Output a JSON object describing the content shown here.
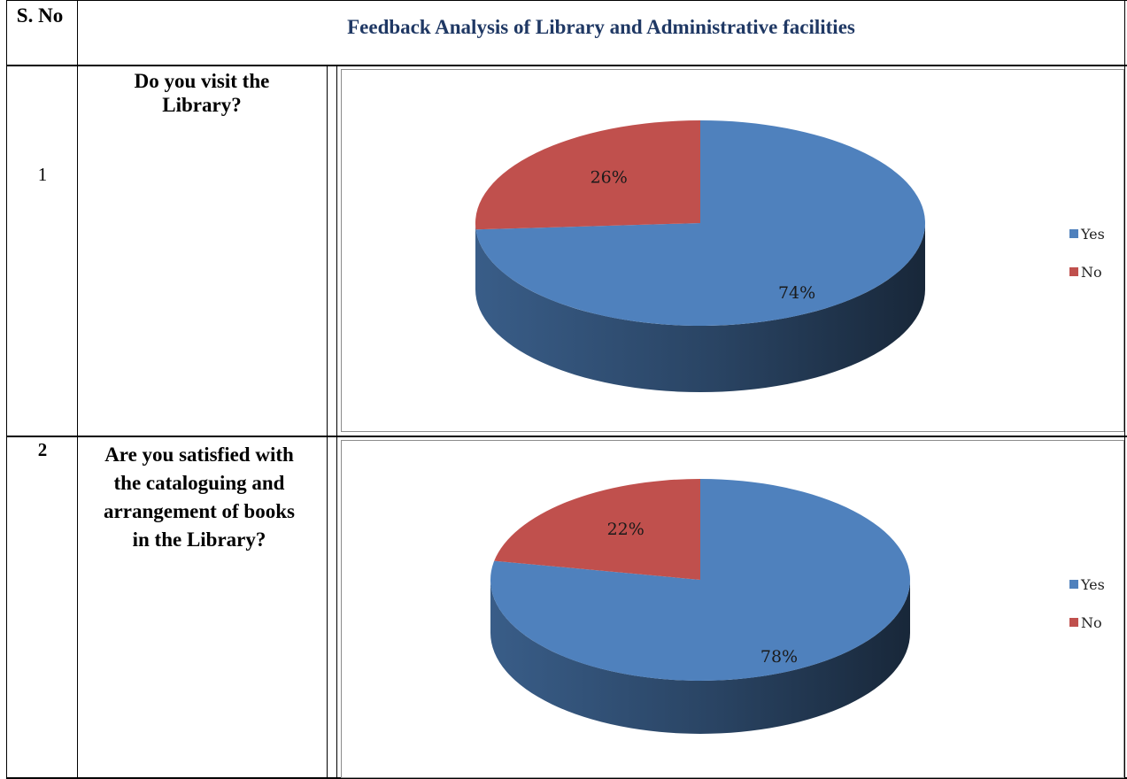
{
  "header": {
    "sno_label": "S. No",
    "title": "Feedback Analysis of Library and Administrative facilities"
  },
  "rows": [
    {
      "number": "1",
      "question": "Do you visit the Library?"
    },
    {
      "number": "2",
      "question": "Are you satisfied with the cataloguing and arrangement of books in the Library?"
    }
  ],
  "colors": {
    "yes": "#4f81bd",
    "no": "#c0504d",
    "title": "#1f3864"
  },
  "chart_data": [
    {
      "type": "pie",
      "categories": [
        "Yes",
        "No"
      ],
      "values": [
        74,
        26
      ],
      "labels": [
        "74%",
        "26%"
      ],
      "legend_position": "right"
    },
    {
      "type": "pie",
      "categories": [
        "Yes",
        "No"
      ],
      "values": [
        78,
        22
      ],
      "labels": [
        "78%",
        "22%"
      ],
      "legend_position": "right"
    }
  ]
}
